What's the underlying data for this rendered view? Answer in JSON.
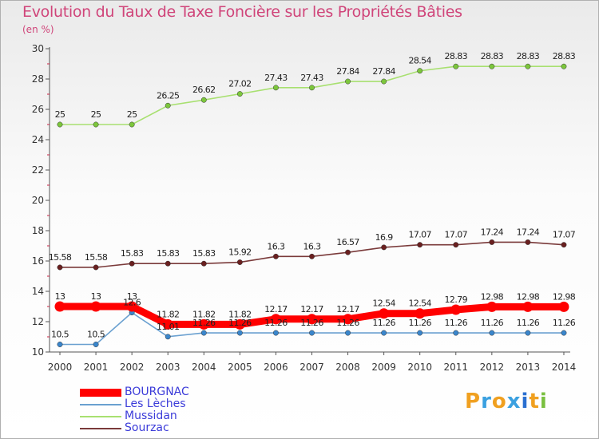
{
  "header": {
    "title": "Evolution du Taux de Taxe Foncière sur les Propriétés Bâties",
    "unit": "(en %)"
  },
  "brand": {
    "text": "Proxiti",
    "colors": [
      "#f0a020",
      "#3aa0e0",
      "#f0a020",
      "#3aa0e0",
      "#2a6fd0",
      "#f0a020",
      "#7ac040"
    ]
  },
  "chart_data": {
    "type": "line",
    "title": "Evolution du Taux de Taxe Foncière sur les Propriétés Bâties",
    "ylabel": "(en %)",
    "xlabel": "",
    "ylim": [
      10,
      30
    ],
    "yticks": [
      10,
      12,
      14,
      16,
      18,
      20,
      22,
      24,
      26,
      28,
      30
    ],
    "grid": false,
    "legend_position": "bottom-left",
    "x": [
      "2000",
      "2001",
      "2002",
      "2003",
      "2004",
      "2005",
      "2006",
      "2007",
      "2008",
      "2009",
      "2010",
      "2011",
      "2012",
      "2013",
      "2014"
    ],
    "series": [
      {
        "name": "BOURGNAC",
        "color": "#ff0000",
        "marker_color": "#ff0000",
        "emphasis": true,
        "values": [
          13,
          13,
          13,
          11.82,
          11.82,
          11.82,
          12.17,
          12.17,
          12.17,
          12.54,
          12.54,
          12.79,
          12.98,
          12.98,
          12.98
        ],
        "labels": [
          "13",
          "13",
          "13",
          "11.82",
          "11.82",
          "11.82",
          "12.17",
          "12.17",
          "12.17",
          "12.54",
          "12.54",
          "12.79",
          "12.98",
          "12.98",
          "12.98"
        ]
      },
      {
        "name": "Les Lèches",
        "color": "#6aa0d0",
        "marker_color": "#3a86cc",
        "emphasis": false,
        "values": [
          10.5,
          10.5,
          12.6,
          11.01,
          11.26,
          11.26,
          11.26,
          11.26,
          11.26,
          11.26,
          11.26,
          11.26,
          11.26,
          11.26,
          11.26
        ],
        "labels": [
          "10.5",
          "10.5",
          "12.6",
          "11.01",
          "11.26",
          "11.26",
          "11.26",
          "11.26",
          "11.26",
          "11.26",
          "11.26",
          "11.26",
          "11.26",
          "11.26",
          "11.26"
        ]
      },
      {
        "name": "Mussidan",
        "color": "#a8e070",
        "marker_color": "#7cc63c",
        "emphasis": false,
        "values": [
          25,
          25,
          25,
          26.25,
          26.62,
          27.02,
          27.43,
          27.43,
          27.84,
          27.84,
          28.54,
          28.83,
          28.83,
          28.83,
          28.83
        ],
        "labels": [
          "25",
          "25",
          "25",
          "26.25",
          "26.62",
          "27.02",
          "27.43",
          "27.43",
          "27.84",
          "27.84",
          "28.54",
          "28.83",
          "28.83",
          "28.83",
          "28.83"
        ]
      },
      {
        "name": "Sourzac",
        "color": "#7a3a3a",
        "marker_color": "#6a2020",
        "emphasis": false,
        "values": [
          15.58,
          15.58,
          15.83,
          15.83,
          15.83,
          15.92,
          16.3,
          16.3,
          16.57,
          16.9,
          17.07,
          17.07,
          17.24,
          17.24,
          17.07
        ],
        "labels": [
          "15.58",
          "15.58",
          "15.83",
          "15.83",
          "15.83",
          "15.92",
          "16.3",
          "16.3",
          "16.57",
          "16.9",
          "17.07",
          "17.07",
          "17.24",
          "17.24",
          "17.07"
        ]
      }
    ]
  }
}
